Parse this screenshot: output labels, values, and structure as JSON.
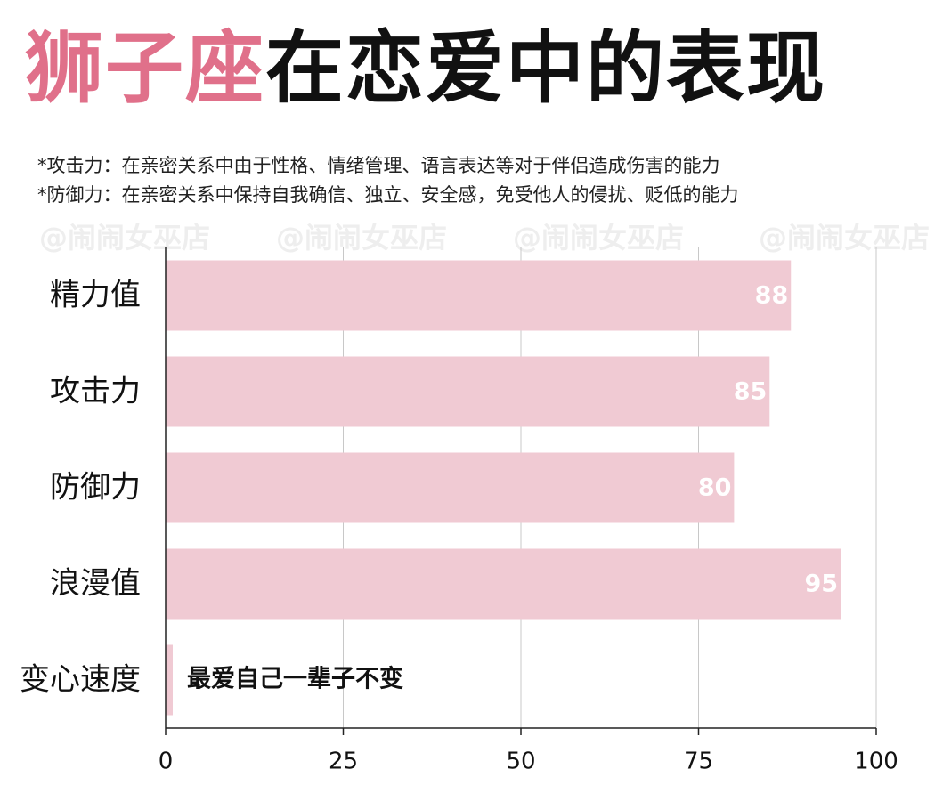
{
  "title": {
    "highlight": "狮子座",
    "rest": "在恋爱中的表现"
  },
  "notes": [
    "*攻击力：在亲密关系中由于性格、情绪管理、语言表达等对于伴侣造成伤害的能力",
    "*防御力：在亲密关系中保持自我确信、独立、安全感，免受他人的侵扰、贬低的能力"
  ],
  "watermark": "@闹闹女巫店",
  "colors": {
    "accent": "#e0708a",
    "bar": "#f0cad3",
    "bar_label": "#ffffff",
    "annotation": "#111111"
  },
  "chart_data": {
    "type": "bar",
    "orientation": "horizontal",
    "categories": [
      "精力值",
      "攻击力",
      "防御力",
      "浪漫值",
      "变心速度"
    ],
    "values": [
      88,
      85,
      80,
      95,
      1
    ],
    "data_labels": [
      "88",
      "85",
      "80",
      "95",
      ""
    ],
    "annotations": [
      {
        "category": "变心速度",
        "text": "最爱自己一辈子不变"
      }
    ],
    "xlim": [
      0,
      100
    ],
    "xticks": [
      0,
      25,
      50,
      75,
      100
    ],
    "grid": "vertical"
  }
}
